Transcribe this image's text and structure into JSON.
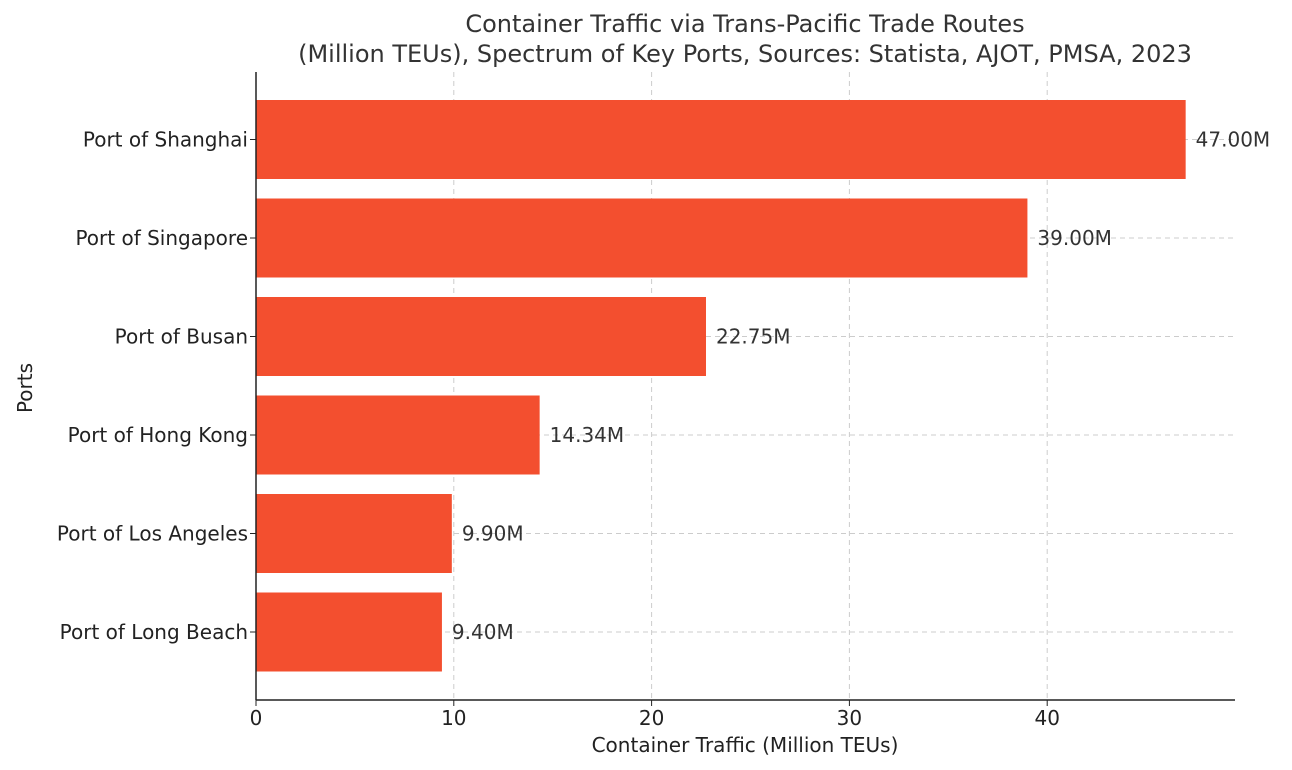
{
  "chart_data": {
    "type": "bar",
    "orientation": "horizontal",
    "title_line1": "Container Traffic via Trans-Pacific Trade Routes",
    "title_line2": "(Million TEUs), Spectrum of Key Ports, Sources: Statista, AJOT, PMSA, 2023",
    "xlabel": "Container Traffic (Million TEUs)",
    "ylabel": "Ports",
    "xlim": [
      0,
      49.5
    ],
    "xticks": [
      0,
      10,
      20,
      30,
      40
    ],
    "grid": true,
    "bar_color": "#f34f2f",
    "categories": [
      "Port of Shanghai",
      "Port of Singapore",
      "Port of Busan",
      "Port of Hong Kong",
      "Port of Los Angeles",
      "Port of Long Beach"
    ],
    "values": [
      47.0,
      39.0,
      22.75,
      14.34,
      9.9,
      9.4
    ],
    "value_labels": [
      "47.00M",
      "39.00M",
      "22.75M",
      "14.34M",
      "9.90M",
      "9.40M"
    ]
  }
}
